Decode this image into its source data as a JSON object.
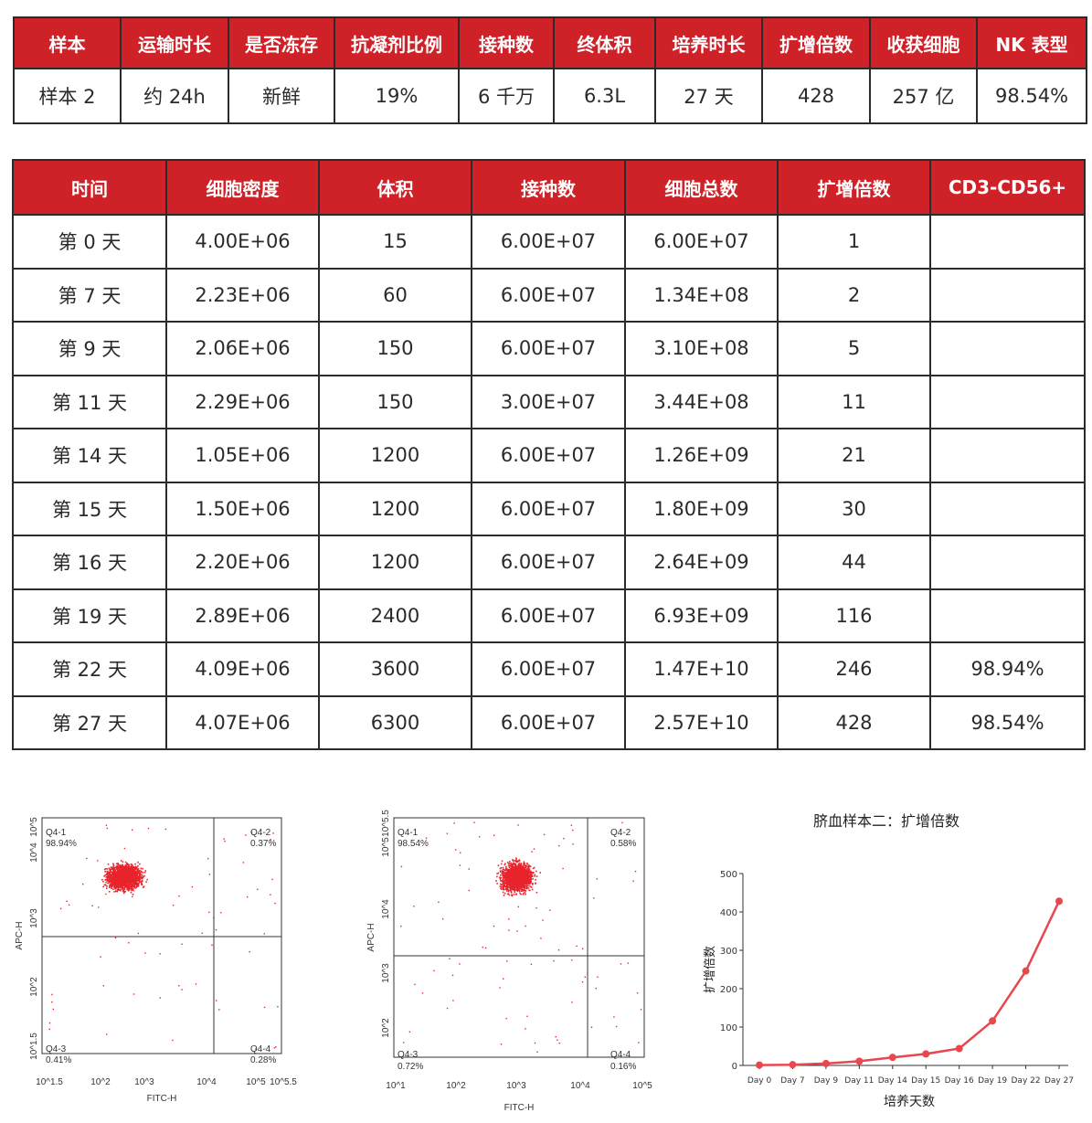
{
  "summary": {
    "headers": [
      "样本",
      "运输时长",
      "是否冻存",
      "抗凝剂比例",
      "接种数",
      "终体积",
      "培养时长",
      "扩增倍数",
      "收获细胞",
      "NK 表型"
    ],
    "values": [
      "样本 2",
      "约 24h",
      "新鲜",
      "19%",
      "6 千万",
      "6.3L",
      "27 天",
      "428",
      "257 亿",
      "98.54%"
    ]
  },
  "growth_table": {
    "headers": [
      "时间",
      "细胞密度",
      "体积",
      "接种数",
      "细胞总数",
      "扩增倍数",
      "CD3-CD56+"
    ],
    "rows": [
      [
        "第 0 天",
        "4.00E+06",
        "15",
        "6.00E+07",
        "6.00E+07",
        "1",
        ""
      ],
      [
        "第 7 天",
        "2.23E+06",
        "60",
        "6.00E+07",
        "1.34E+08",
        "2",
        ""
      ],
      [
        "第 9 天",
        "2.06E+06",
        "150",
        "6.00E+07",
        "3.10E+08",
        "5",
        ""
      ],
      [
        "第 11 天",
        "2.29E+06",
        "150",
        "3.00E+07",
        "3.44E+08",
        "11",
        ""
      ],
      [
        "第 14 天",
        "1.05E+06",
        "1200",
        "6.00E+07",
        "1.26E+09",
        "21",
        ""
      ],
      [
        "第 15 天",
        "1.50E+06",
        "1200",
        "6.00E+07",
        "1.80E+09",
        "30",
        ""
      ],
      [
        "第 16 天",
        "2.20E+06",
        "1200",
        "6.00E+07",
        "2.64E+09",
        "44",
        ""
      ],
      [
        "第 19 天",
        "2.89E+06",
        "2400",
        "6.00E+07",
        "6.93E+09",
        "116",
        ""
      ],
      [
        "第 22 天",
        "4.09E+06",
        "3600",
        "6.00E+07",
        "1.47E+10",
        "246",
        "98.94%"
      ],
      [
        "第 27 天",
        "4.07E+06",
        "6300",
        "6.00E+07",
        "2.57E+10",
        "428",
        "98.54%"
      ]
    ]
  },
  "flow_plots": [
    {
      "xlabel": "FITC-H",
      "ylabel": "APC-H",
      "x_ticks": [
        "10^1.5",
        "10^2",
        "10^3",
        "10^4",
        "10^5",
        "10^5.5"
      ],
      "y_ticks": [
        "10^1.5",
        "10^2",
        "10^3",
        "10^4",
        "10^5",
        "10^5.5"
      ],
      "quadrants": [
        {
          "name": "Q4-1",
          "value": "98.94%"
        },
        {
          "name": "Q4-2",
          "value": "0.37%"
        },
        {
          "name": "Q4-3",
          "value": "0.41%"
        },
        {
          "name": "Q4-4",
          "value": "0.28%"
        }
      ]
    },
    {
      "xlabel": "FITC-H",
      "ylabel": "APC-H",
      "x_ticks": [
        "10^1",
        "10^2",
        "10^3",
        "10^4",
        "10^5"
      ],
      "y_ticks": [
        "10^2",
        "10^3",
        "10^4",
        "10^5",
        "10^5.5"
      ],
      "quadrants": [
        {
          "name": "Q4-1",
          "value": "98.54%"
        },
        {
          "name": "Q4-2",
          "value": "0.58%"
        },
        {
          "name": "Q4-3",
          "value": "0.72%"
        },
        {
          "name": "Q4-4",
          "value": "0.16%"
        }
      ]
    }
  ],
  "chart_data": {
    "type": "line",
    "title": "脐血样本二：扩增倍数",
    "xlabel": "培养天数",
    "ylabel": "扩增倍数",
    "categories": [
      "Day 0",
      "Day 7",
      "Day 9",
      "Day 11",
      "Day 14",
      "Day 15",
      "Day 16",
      "Day 19",
      "Day 22",
      "Day 27"
    ],
    "values": [
      1,
      2,
      5,
      11,
      21,
      30,
      44,
      116,
      246,
      428
    ],
    "ylim": [
      0,
      500
    ],
    "yticks": [
      0,
      100,
      200,
      300,
      400,
      500
    ],
    "color": "#e8474e",
    "grid": false
  },
  "colors": {
    "header_red": "#cf2128",
    "dot_red": "#e8242c",
    "line_red": "#e8474e"
  }
}
